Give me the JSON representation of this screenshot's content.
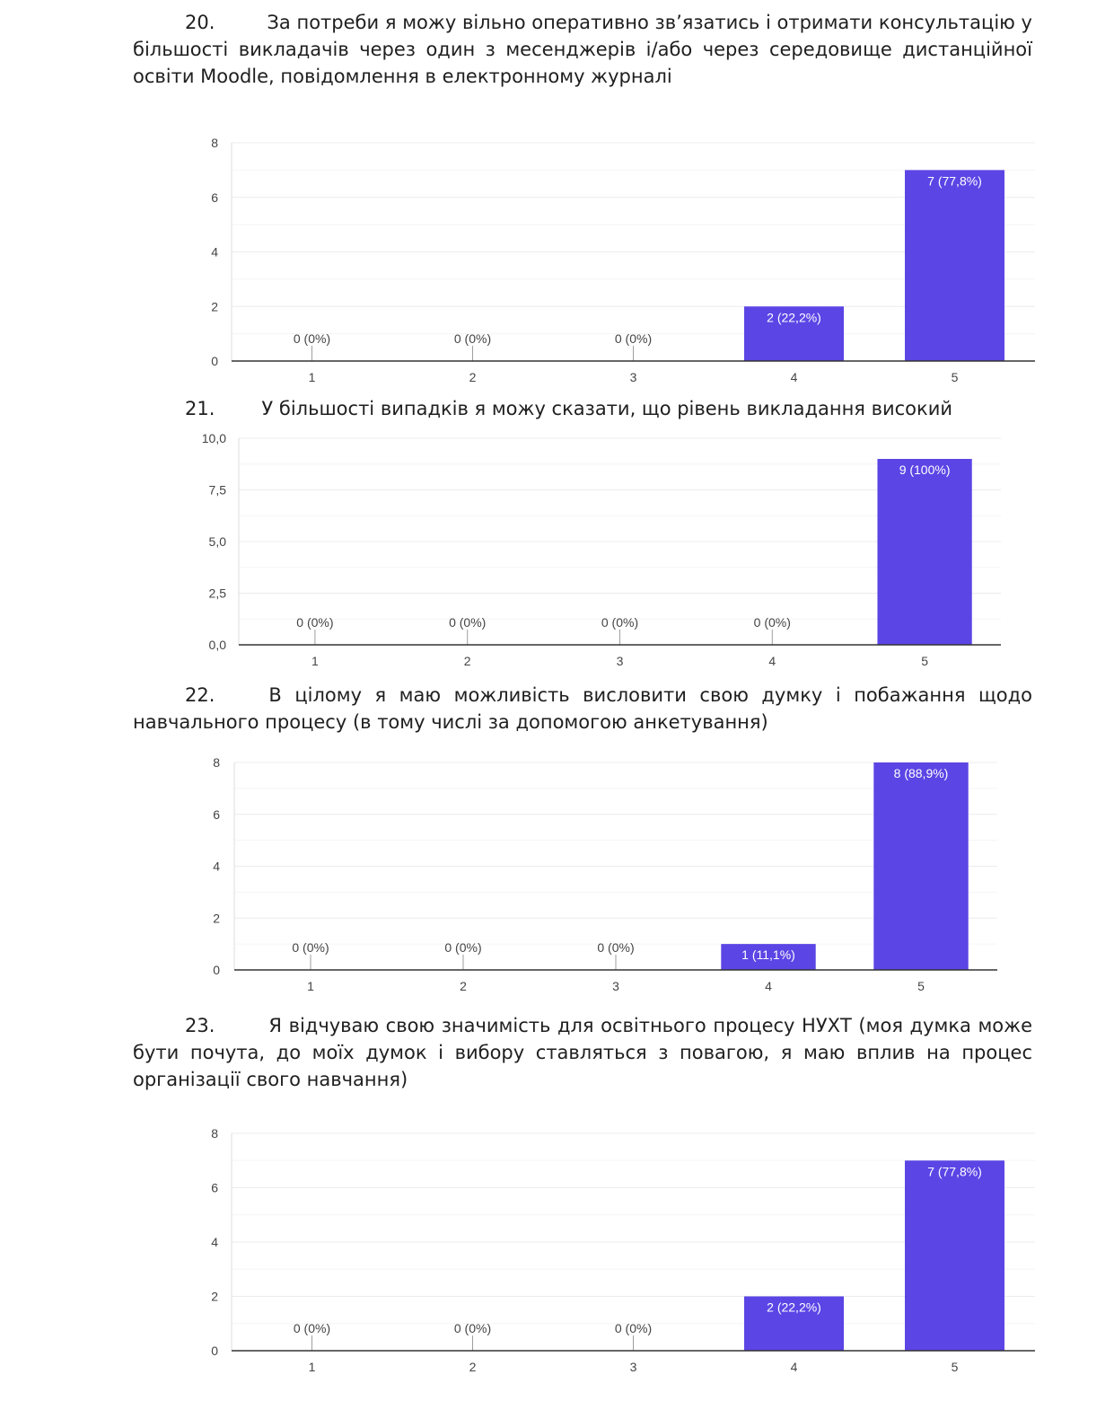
{
  "questions": [
    {
      "number": "20.",
      "text": "За потреби я можу вільно оперативно зв’язатись і отримати консультацію у більшості викладачів через один з месенджерів і/або через середовище дистанційної освіти Moodle, повідомлення в електронному журналі"
    },
    {
      "number": "21.",
      "text": "У більшості випадків я можу сказати, що рівень викладання високий"
    },
    {
      "number": "22.",
      "text": "В цілому я маю можливість висловити свою думку і побажання щодо навчального процесу (в тому числі за допомогою анкетування)"
    },
    {
      "number": "23.",
      "text": "Я відчуваю свою значимість для освітнього процесу НУХТ (моя думка може бути почута, до моїх думок і вибору ставляться з повагою, я маю вплив на процес організації свого навчання)"
    }
  ],
  "chart_data": [
    {
      "type": "bar",
      "categories": [
        "1",
        "2",
        "3",
        "4",
        "5"
      ],
      "values": [
        0,
        0,
        0,
        2,
        7
      ],
      "data_labels": [
        "0 (0%)",
        "0 (0%)",
        "0 (0%)",
        "2 (22,2%)",
        "7 (77,8%)"
      ],
      "yticks": [
        "0",
        "2",
        "4",
        "6",
        "8"
      ],
      "ylim": [
        0,
        8
      ],
      "grid": true,
      "bar_color": "#5b45e5"
    },
    {
      "type": "bar",
      "categories": [
        "1",
        "2",
        "3",
        "4",
        "5"
      ],
      "values": [
        0,
        0,
        0,
        0,
        9
      ],
      "data_labels": [
        "0 (0%)",
        "0 (0%)",
        "0 (0%)",
        "0 (0%)",
        "9 (100%)"
      ],
      "yticks": [
        "0,0",
        "2,5",
        "5,0",
        "7,5",
        "10,0"
      ],
      "ylim": [
        0,
        10
      ],
      "grid": true,
      "bar_color": "#5b45e5"
    },
    {
      "type": "bar",
      "categories": [
        "1",
        "2",
        "3",
        "4",
        "5"
      ],
      "values": [
        0,
        0,
        0,
        1,
        8
      ],
      "data_labels": [
        "0 (0%)",
        "0 (0%)",
        "0 (0%)",
        "1 (11,1%)",
        "8 (88,9%)"
      ],
      "yticks": [
        "0",
        "2",
        "4",
        "6",
        "8"
      ],
      "ylim": [
        0,
        8
      ],
      "grid": true,
      "bar_color": "#5b45e5"
    },
    {
      "type": "bar",
      "categories": [
        "1",
        "2",
        "3",
        "4",
        "5"
      ],
      "values": [
        0,
        0,
        0,
        2,
        7
      ],
      "data_labels": [
        "0 (0%)",
        "0 (0%)",
        "0 (0%)",
        "2 (22,2%)",
        "7 (77,8%)"
      ],
      "yticks": [
        "0",
        "2",
        "4",
        "6",
        "8"
      ],
      "ylim": [
        0,
        8
      ],
      "grid": true,
      "bar_color": "#5b45e5"
    }
  ]
}
